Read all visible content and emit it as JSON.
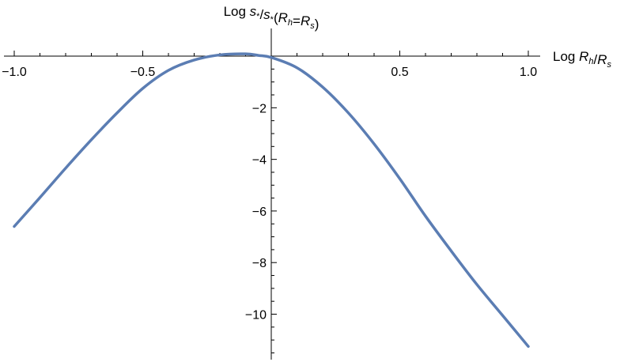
{
  "chart_data": {
    "type": "line",
    "title": "",
    "xlabel": {
      "prefix": "Log ",
      "parts": [
        [
          "R",
          "h"
        ],
        [
          "/",
          ""
        ],
        [
          "R",
          "s"
        ]
      ]
    },
    "ylabel": {
      "prefix": "Log ",
      "parts": [
        [
          "s",
          "*"
        ],
        [
          "/",
          ""
        ],
        [
          "s",
          "*"
        ],
        [
          "(",
          ""
        ],
        [
          "R",
          "h"
        ],
        [
          "=",
          ""
        ],
        [
          "R",
          "s"
        ],
        [
          ")",
          ""
        ]
      ]
    },
    "xlim": [
      -1.0,
      1.0
    ],
    "ylim": [
      -11.7,
      0.4
    ],
    "x_ticks": [
      -1.0,
      -0.5,
      0.5,
      1.0
    ],
    "x_tick_labels": [
      "−1.0",
      "−0.5",
      "0.5",
      "1.0"
    ],
    "y_ticks": [
      -2,
      -4,
      -6,
      -8,
      -10
    ],
    "y_tick_labels": [
      "−2",
      "−4",
      "−6",
      "−8",
      "−10"
    ],
    "grid": false,
    "series": [
      {
        "color": "#5b7db3",
        "x": [
          -1.0,
          -0.9,
          -0.8,
          -0.7,
          -0.6,
          -0.5,
          -0.4,
          -0.3,
          -0.2,
          -0.1,
          -0.05,
          0.0,
          0.1,
          0.2,
          0.3,
          0.4,
          0.5,
          0.6,
          0.7,
          0.8,
          0.9,
          1.0
        ],
        "y": [
          -6.6,
          -5.48,
          -4.34,
          -3.24,
          -2.2,
          -1.25,
          -0.55,
          -0.15,
          0.05,
          0.09,
          0.03,
          -0.05,
          -0.45,
          -1.2,
          -2.2,
          -3.4,
          -4.75,
          -6.2,
          -7.55,
          -8.85,
          -10.05,
          -11.25
        ]
      }
    ]
  }
}
